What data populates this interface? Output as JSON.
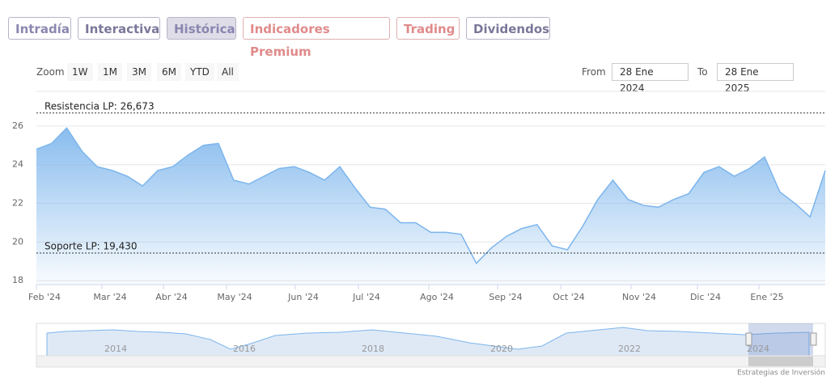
{
  "tabs": [
    "Intradía",
    "Interactiva",
    "Histórica",
    "Indicadores Premium",
    "Trading",
    "Dividendos"
  ],
  "zoom": {
    "label": "Zoom",
    "buttons": [
      "1W",
      "1M",
      "3M",
      "6M",
      "YTD",
      "All"
    ]
  },
  "range": {
    "from_label": "From",
    "from": "28 Ene 2024",
    "to_label": "To",
    "to": "28 Ene 2025"
  },
  "chart_data": {
    "type": "area",
    "color": "#7cb5ec",
    "values": [
      24.8,
      25.1,
      25.9,
      24.7,
      23.9,
      23.7,
      23.4,
      22.9,
      23.7,
      23.9,
      24.5,
      25.0,
      25.1,
      23.2,
      23.0,
      23.4,
      23.8,
      23.9,
      23.6,
      23.2,
      23.9,
      22.8,
      21.8,
      21.7,
      21.0,
      21.0,
      20.5,
      20.5,
      20.4,
      18.9,
      19.7,
      20.3,
      20.7,
      20.9,
      19.8,
      19.6,
      20.8,
      22.2,
      23.2,
      22.2,
      21.9,
      21.8,
      22.2,
      22.5,
      23.6,
      23.9,
      23.4,
      23.8,
      24.4,
      22.6,
      22.0,
      21.3,
      23.7
    ],
    "ylim": [
      17.8,
      27.5
    ],
    "yticks": [
      18,
      20,
      22,
      24,
      26
    ],
    "grid": true,
    "xticks": [
      "Feb '24",
      "Mar '24",
      "Abr '24",
      "May '24",
      "Jun '24",
      "Jul '24",
      "Ago '24",
      "Sep '24",
      "Oct '24",
      "Nov '24",
      "Dic '24",
      "Ene '25"
    ],
    "annotations": [
      {
        "label": "Resistencia LP: 26,673",
        "value": 26.673
      },
      {
        "label": "Soporte LP: 19,430",
        "value": 19.43
      }
    ],
    "navigator_years": [
      "2014",
      "2016",
      "2018",
      "2020",
      "2022",
      "2024"
    ]
  },
  "footer": "Estrategias de Inversión"
}
